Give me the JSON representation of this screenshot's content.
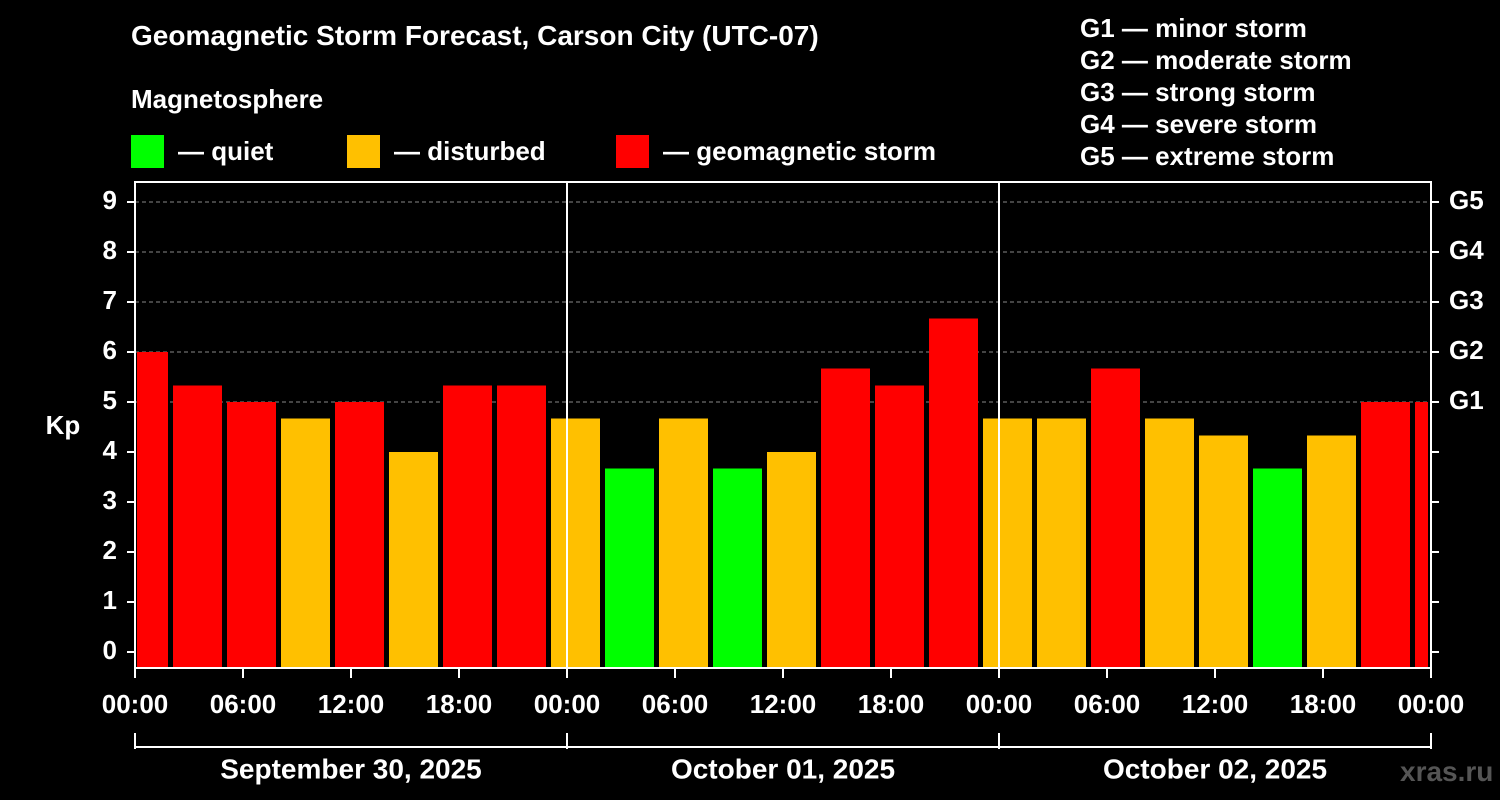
{
  "title": "Geomagnetic Storm Forecast, Carson City (UTC-07)",
  "legend": {
    "title": "Magnetosphere",
    "items": [
      {
        "label": "— quiet",
        "color": "#00ff00"
      },
      {
        "label": "— disturbed",
        "color": "#ffc000"
      },
      {
        "label": "— geomagnetic storm",
        "color": "#ff0000"
      }
    ]
  },
  "storm_scale": [
    "G1 — minor storm",
    "G2 — moderate storm",
    "G3 — strong storm",
    "G4 — severe storm",
    "G5 — extreme storm"
  ],
  "watermark": "xras.ru",
  "chart_data": {
    "type": "bar",
    "title": "Geomagnetic Storm Forecast, Carson City (UTC-07)",
    "ylabel": "Kp",
    "ylim": [
      0,
      9
    ],
    "yticks": [
      "0",
      "1",
      "2",
      "3",
      "4",
      "5",
      "6",
      "7",
      "8",
      "9"
    ],
    "right_axis_labels": [
      {
        "kp": 5,
        "label": "G1"
      },
      {
        "kp": 6,
        "label": "G2"
      },
      {
        "kp": 7,
        "label": "G3"
      },
      {
        "kp": 8,
        "label": "G4"
      },
      {
        "kp": 9,
        "label": "G5"
      }
    ],
    "x_tick_labels": [
      "00:00",
      "06:00",
      "12:00",
      "18:00",
      "00:00",
      "06:00",
      "12:00",
      "18:00",
      "00:00",
      "06:00",
      "12:00",
      "18:00",
      "00:00"
    ],
    "days": [
      "September 30, 2025",
      "October 01, 2025",
      "October 02, 2025"
    ],
    "x_range_hours": [
      0,
      72
    ],
    "series": [
      {
        "name": "Kp",
        "bars": [
          {
            "start_hour": 0,
            "end_hour": 2,
            "kp": 6.0,
            "level": "storm"
          },
          {
            "start_hour": 2,
            "end_hour": 5,
            "kp": 5.33,
            "level": "storm"
          },
          {
            "start_hour": 5,
            "end_hour": 8,
            "kp": 5.0,
            "level": "storm"
          },
          {
            "start_hour": 8,
            "end_hour": 11,
            "kp": 4.67,
            "level": "disturbed"
          },
          {
            "start_hour": 11,
            "end_hour": 14,
            "kp": 5.0,
            "level": "storm"
          },
          {
            "start_hour": 14,
            "end_hour": 17,
            "kp": 4.0,
            "level": "disturbed"
          },
          {
            "start_hour": 17,
            "end_hour": 20,
            "kp": 5.33,
            "level": "storm"
          },
          {
            "start_hour": 20,
            "end_hour": 23,
            "kp": 5.33,
            "level": "storm"
          },
          {
            "start_hour": 23,
            "end_hour": 26,
            "kp": 4.67,
            "level": "disturbed"
          },
          {
            "start_hour": 26,
            "end_hour": 29,
            "kp": 3.67,
            "level": "quiet"
          },
          {
            "start_hour": 29,
            "end_hour": 32,
            "kp": 4.67,
            "level": "disturbed"
          },
          {
            "start_hour": 32,
            "end_hour": 35,
            "kp": 3.67,
            "level": "quiet"
          },
          {
            "start_hour": 35,
            "end_hour": 38,
            "kp": 4.0,
            "level": "disturbed"
          },
          {
            "start_hour": 38,
            "end_hour": 41,
            "kp": 5.67,
            "level": "storm"
          },
          {
            "start_hour": 41,
            "end_hour": 44,
            "kp": 5.33,
            "level": "storm"
          },
          {
            "start_hour": 44,
            "end_hour": 47,
            "kp": 6.67,
            "level": "storm"
          },
          {
            "start_hour": 47,
            "end_hour": 50,
            "kp": 4.67,
            "level": "disturbed"
          },
          {
            "start_hour": 50,
            "end_hour": 53,
            "kp": 4.67,
            "level": "disturbed"
          },
          {
            "start_hour": 53,
            "end_hour": 56,
            "kp": 5.67,
            "level": "storm"
          },
          {
            "start_hour": 56,
            "end_hour": 59,
            "kp": 4.67,
            "level": "disturbed"
          },
          {
            "start_hour": 59,
            "end_hour": 62,
            "kp": 4.33,
            "level": "disturbed"
          },
          {
            "start_hour": 62,
            "end_hour": 65,
            "kp": 3.67,
            "level": "quiet"
          },
          {
            "start_hour": 65,
            "end_hour": 68,
            "kp": 4.33,
            "level": "disturbed"
          },
          {
            "start_hour": 68,
            "end_hour": 71,
            "kp": 5.0,
            "level": "storm"
          },
          {
            "start_hour": 71,
            "end_hour": 72,
            "kp": 5.0,
            "level": "storm"
          }
        ]
      }
    ],
    "level_colors": {
      "quiet": "#00ff00",
      "disturbed": "#ffc000",
      "storm": "#ff0000"
    },
    "grid": true
  }
}
